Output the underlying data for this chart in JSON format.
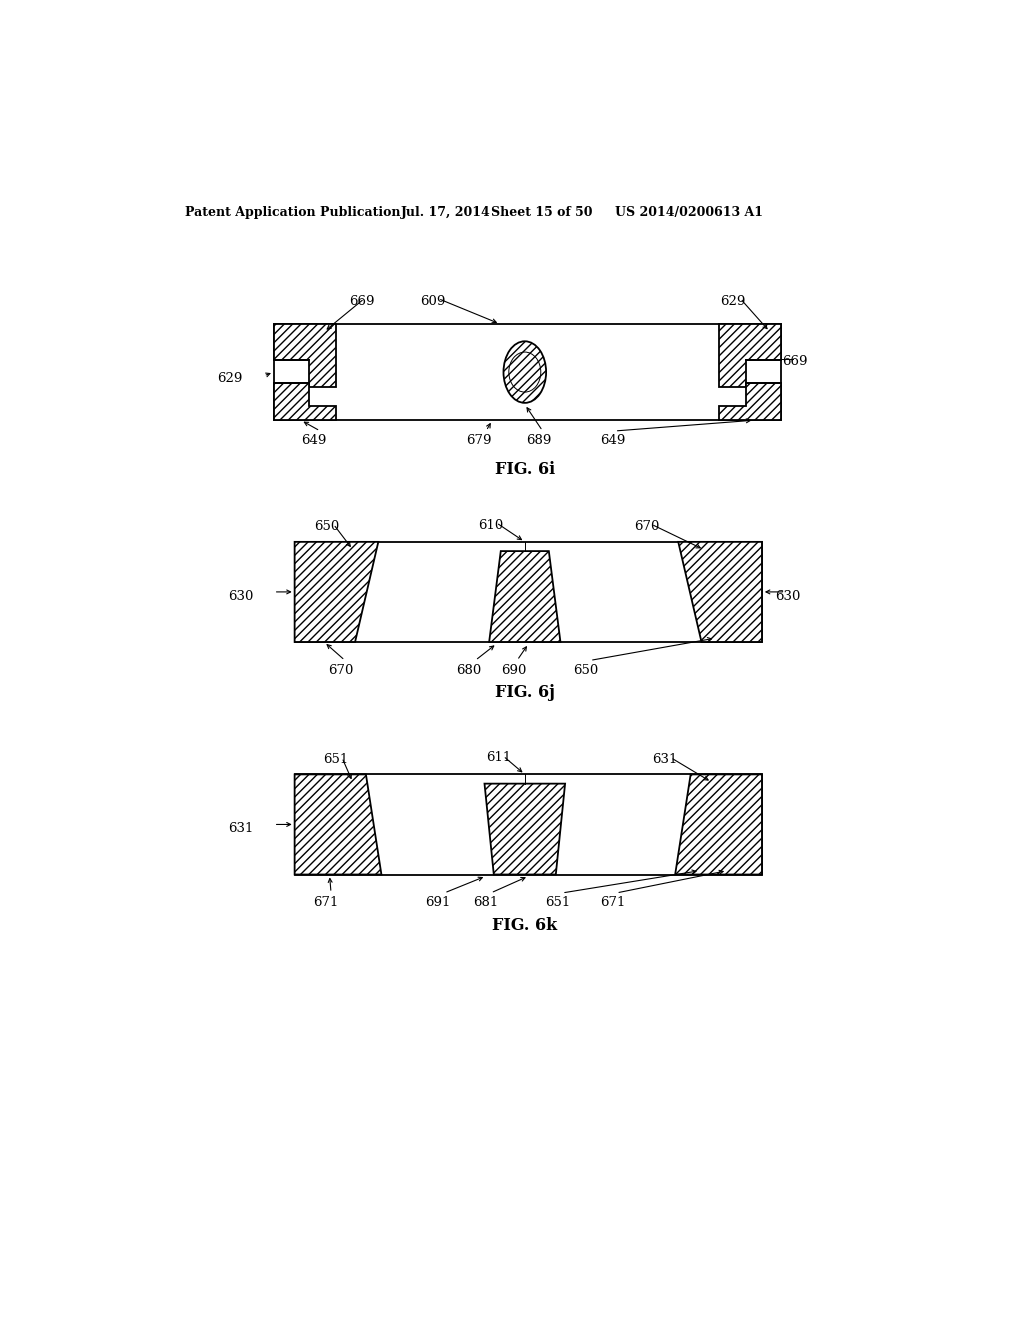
{
  "bg_color": "#ffffff",
  "header_text": "Patent Application Publication",
  "header_date": "Jul. 17, 2014",
  "header_sheet": "Sheet 15 of 50",
  "header_patent": "US 2014/0200613 A1",
  "fig_i_label": "FIG. 6i",
  "fig_j_label": "FIG. 6j",
  "fig_k_label": "FIG. 6k",
  "label_fontsize": 9.5,
  "caption_fontsize": 11.5
}
